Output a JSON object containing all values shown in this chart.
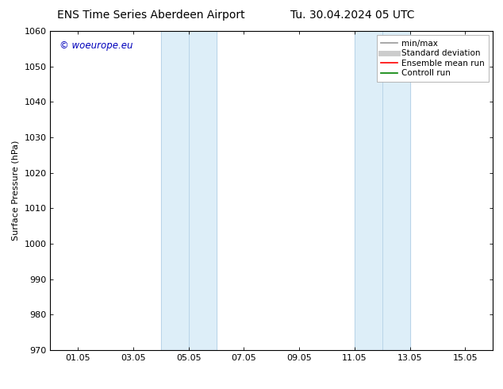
{
  "title_left": "ENS Time Series Aberdeen Airport",
  "title_right": "Tu. 30.04.2024 05 UTC",
  "ylabel": "Surface Pressure (hPa)",
  "ylim": [
    970,
    1060
  ],
  "yticks": [
    970,
    980,
    990,
    1000,
    1010,
    1020,
    1030,
    1040,
    1050,
    1060
  ],
  "xlim": [
    0.0,
    16.0
  ],
  "xtick_labels": [
    "01.05",
    "03.05",
    "05.05",
    "07.05",
    "09.05",
    "11.05",
    "13.05",
    "15.05"
  ],
  "xtick_positions": [
    1,
    3,
    5,
    7,
    9,
    11,
    13,
    15
  ],
  "shaded_bands": [
    {
      "xmin": 4.0,
      "xmid": 5.0,
      "xmax": 6.0
    },
    {
      "xmin": 11.0,
      "xmid": 12.0,
      "xmax": 13.0
    }
  ],
  "band_color": "#ddeef8",
  "band_edge_color": "#b8d4e8",
  "watermark_text": "© woeurope.eu",
  "watermark_color": "#0000bb",
  "legend_items": [
    {
      "label": "min/max",
      "color": "#999999",
      "lw": 1.2
    },
    {
      "label": "Standard deviation",
      "color": "#cccccc",
      "lw": 5
    },
    {
      "label": "Ensemble mean run",
      "color": "#ff0000",
      "lw": 1.2
    },
    {
      "label": "Controll run",
      "color": "#008000",
      "lw": 1.2
    }
  ],
  "bg_color": "#ffffff",
  "axes_bg_color": "#ffffff",
  "title_fontsize": 10,
  "tick_fontsize": 8,
  "ylabel_fontsize": 8,
  "legend_fontsize": 7.5
}
